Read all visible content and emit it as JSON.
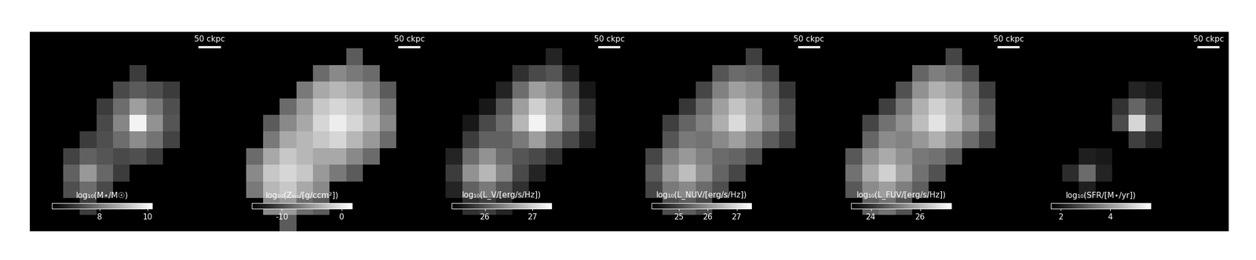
{
  "chart_data": [
    {
      "type": "heatmap",
      "tick_labels": false,
      "color": "gray",
      "scale_bar": {
        "label": "50 ckpc",
        "length": 50
      },
      "field_of_view": 450,
      "colorbar_label": "log₁₀(M⋆/M☉)",
      "colorbar_range": [
        6.0,
        10.2
      ],
      "colorbar_ticks": [
        8,
        10
      ],
      "cells": [
        [
          null,
          null,
          null,
          null,
          null,
          null,
          null,
          null,
          null,
          null,
          null,
          null
        ],
        [
          null,
          null,
          null,
          null,
          null,
          null,
          null,
          null,
          null,
          null,
          null,
          null
        ],
        [
          null,
          null,
          null,
          null,
          null,
          null,
          7.0,
          null,
          null,
          null,
          null,
          null
        ],
        [
          null,
          null,
          null,
          null,
          null,
          7.2,
          7.5,
          7.3,
          7.0,
          null,
          null,
          null
        ],
        [
          null,
          null,
          null,
          null,
          7.0,
          7.8,
          8.6,
          8.0,
          7.3,
          null,
          null,
          null
        ],
        [
          null,
          null,
          null,
          null,
          7.2,
          8.2,
          10.0,
          8.4,
          7.4,
          null,
          null,
          null
        ],
        [
          null,
          null,
          null,
          7.0,
          7.3,
          7.8,
          8.3,
          7.9,
          7.1,
          null,
          null,
          null
        ],
        [
          null,
          null,
          7.1,
          7.6,
          7.4,
          7.2,
          7.3,
          7.0,
          null,
          null,
          null,
          null
        ],
        [
          null,
          null,
          7.6,
          8.5,
          7.7,
          7.0,
          null,
          null,
          null,
          null,
          null,
          null
        ],
        [
          null,
          null,
          7.3,
          7.8,
          7.2,
          null,
          null,
          null,
          null,
          null,
          null,
          null
        ],
        [
          null,
          null,
          null,
          7.0,
          null,
          null,
          null,
          null,
          null,
          null,
          null,
          null
        ],
        [
          null,
          null,
          null,
          null,
          null,
          null,
          null,
          null,
          null,
          null,
          null,
          null
        ]
      ]
    },
    {
      "type": "heatmap",
      "tick_labels": false,
      "color": "gray",
      "scale_bar": {
        "label": "50 ckpc",
        "length": 50
      },
      "field_of_view": 450,
      "colorbar_label": "log₁₀(Zₗₒₛ/[g/ccm²])",
      "colorbar_range": [
        -15.0,
        1.7
      ],
      "colorbar_ticks": [
        -10,
        0
      ],
      "cells": [
        [
          null,
          null,
          null,
          null,
          null,
          null,
          null,
          null,
          null,
          null,
          null,
          null
        ],
        [
          null,
          null,
          null,
          null,
          null,
          null,
          null,
          -9,
          null,
          null,
          null,
          null
        ],
        [
          null,
          null,
          null,
          null,
          null,
          -8,
          -6,
          -7,
          -8,
          null,
          null,
          null
        ],
        [
          null,
          null,
          null,
          null,
          -7,
          -4,
          -3,
          -4,
          -6,
          -9,
          null,
          null
        ],
        [
          null,
          null,
          null,
          -8,
          -5,
          -2,
          -1,
          -2,
          -4,
          -7,
          null,
          null
        ],
        [
          null,
          null,
          -9,
          -6,
          -4,
          -1,
          0.5,
          -1,
          -3,
          -6,
          null,
          null
        ],
        [
          null,
          null,
          -7,
          -4,
          -3,
          -2,
          -1,
          -3,
          -5,
          -8,
          null,
          null
        ],
        [
          null,
          -8,
          -4,
          -2,
          -3,
          -4,
          -4,
          -6,
          -8,
          null,
          null,
          null
        ],
        [
          null,
          -6,
          -2,
          -1,
          -2,
          -5,
          -7,
          -9,
          null,
          null,
          null,
          null
        ],
        [
          null,
          -7,
          -3,
          -2,
          -4,
          -6,
          null,
          null,
          null,
          null,
          null,
          null
        ],
        [
          null,
          null,
          -6,
          -5,
          -8,
          -9,
          null,
          null,
          null,
          null,
          null,
          null
        ],
        [
          null,
          null,
          null,
          -9,
          null,
          null,
          null,
          null,
          null,
          null,
          null,
          null
        ]
      ]
    },
    {
      "type": "heatmap",
      "tick_labels": false,
      "color": "gray",
      "scale_bar": {
        "label": "50 ckpc",
        "length": 50
      },
      "field_of_view": 450,
      "colorbar_label": "log₁₀(L_V/[erg/s/Hz])",
      "colorbar_range": [
        25.3,
        27.4
      ],
      "colorbar_ticks": [
        26,
        27
      ],
      "cells": [
        [
          null,
          null,
          null,
          null,
          null,
          null,
          null,
          null,
          null,
          null,
          null,
          null
        ],
        [
          null,
          null,
          null,
          null,
          null,
          null,
          null,
          25.6,
          null,
          null,
          null,
          null
        ],
        [
          null,
          null,
          null,
          null,
          null,
          25.7,
          25.9,
          26.0,
          25.6,
          null,
          null,
          null
        ],
        [
          null,
          null,
          null,
          null,
          25.6,
          26.2,
          26.6,
          26.4,
          26.0,
          25.5,
          null,
          null
        ],
        [
          null,
          null,
          null,
          25.5,
          26.0,
          26.6,
          27.0,
          26.7,
          26.2,
          25.7,
          null,
          null
        ],
        [
          null,
          null,
          25.5,
          25.9,
          26.2,
          26.8,
          27.3,
          26.8,
          26.3,
          25.8,
          null,
          null
        ],
        [
          null,
          null,
          25.8,
          26.1,
          26.1,
          26.3,
          26.6,
          26.2,
          25.9,
          25.6,
          null,
          null
        ],
        [
          null,
          25.6,
          26.2,
          26.5,
          26.2,
          26.0,
          25.9,
          25.7,
          null,
          null,
          null,
          null
        ],
        [
          null,
          25.8,
          26.5,
          26.8,
          26.4,
          25.9,
          25.6,
          null,
          null,
          null,
          null,
          null
        ],
        [
          null,
          25.6,
          26.1,
          26.3,
          26.0,
          25.7,
          null,
          null,
          null,
          null,
          null,
          null
        ],
        [
          null,
          null,
          25.7,
          25.8,
          25.6,
          null,
          null,
          null,
          null,
          null,
          null,
          null
        ],
        [
          null,
          null,
          null,
          null,
          null,
          null,
          null,
          null,
          null,
          null,
          null,
          null
        ]
      ]
    },
    {
      "type": "heatmap",
      "tick_labels": false,
      "color": "gray",
      "scale_bar": {
        "label": "50 ckpc",
        "length": 50
      },
      "field_of_view": 450,
      "colorbar_label": "log₁₀(L_NUV/[erg/s/Hz])",
      "colorbar_range": [
        24.05,
        27.5
      ],
      "colorbar_ticks": [
        25,
        26,
        27
      ],
      "cells": [
        [
          null,
          null,
          null,
          null,
          null,
          null,
          null,
          null,
          null,
          null,
          null,
          null
        ],
        [
          null,
          null,
          null,
          null,
          null,
          null,
          null,
          24.9,
          null,
          null,
          null,
          null
        ],
        [
          null,
          null,
          null,
          null,
          null,
          25.2,
          25.5,
          25.4,
          25.0,
          null,
          null,
          null
        ],
        [
          null,
          null,
          null,
          null,
          25.0,
          25.8,
          26.2,
          26.0,
          25.5,
          24.8,
          null,
          null
        ],
        [
          null,
          null,
          null,
          24.8,
          25.5,
          26.2,
          26.7,
          26.3,
          25.7,
          25.1,
          null,
          null
        ],
        [
          null,
          null,
          24.9,
          25.4,
          25.8,
          26.4,
          27.0,
          26.4,
          25.9,
          25.2,
          null,
          null
        ],
        [
          null,
          null,
          25.2,
          25.7,
          25.6,
          25.9,
          26.2,
          25.8,
          25.3,
          24.9,
          null,
          null
        ],
        [
          null,
          25.0,
          25.8,
          26.1,
          25.8,
          25.5,
          25.4,
          25.1,
          null,
          null,
          null,
          null
        ],
        [
          null,
          25.3,
          26.1,
          26.6,
          26.0,
          25.4,
          25.0,
          null,
          null,
          null,
          null,
          null
        ],
        [
          null,
          25.0,
          25.7,
          25.9,
          25.5,
          25.1,
          null,
          null,
          null,
          null,
          null,
          null
        ],
        [
          null,
          null,
          25.1,
          25.3,
          25.0,
          null,
          null,
          null,
          null,
          null,
          null,
          null
        ],
        [
          null,
          null,
          null,
          null,
          null,
          null,
          null,
          null,
          null,
          null,
          null,
          null
        ]
      ]
    },
    {
      "type": "heatmap",
      "tick_labels": false,
      "color": "gray",
      "scale_bar": {
        "label": "50 ckpc",
        "length": 50
      },
      "field_of_view": 450,
      "colorbar_label": "log₁₀(L_FUV/[erg/s/Hz])",
      "colorbar_range": [
        23.2,
        27.25
      ],
      "colorbar_ticks": [
        24,
        26
      ],
      "cells": [
        [
          null,
          null,
          null,
          null,
          null,
          null,
          null,
          null,
          null,
          null,
          null,
          null
        ],
        [
          null,
          null,
          null,
          null,
          null,
          null,
          null,
          24.3,
          null,
          null,
          null,
          null
        ],
        [
          null,
          null,
          null,
          null,
          null,
          24.8,
          25.2,
          25.0,
          24.4,
          null,
          null,
          null
        ],
        [
          null,
          null,
          null,
          null,
          24.5,
          25.5,
          26.0,
          25.7,
          25.1,
          24.2,
          null,
          null
        ],
        [
          null,
          null,
          null,
          24.2,
          25.1,
          26.0,
          26.5,
          26.1,
          25.3,
          24.6,
          null,
          null
        ],
        [
          null,
          null,
          24.3,
          25.0,
          25.5,
          26.2,
          26.8,
          26.2,
          25.6,
          24.8,
          null,
          null
        ],
        [
          null,
          null,
          24.8,
          25.4,
          25.3,
          25.6,
          26.0,
          25.5,
          24.9,
          24.3,
          null,
          null
        ],
        [
          null,
          24.6,
          25.5,
          25.9,
          25.5,
          25.1,
          25.0,
          24.6,
          null,
          null,
          null,
          null
        ],
        [
          null,
          25.0,
          25.9,
          26.5,
          25.8,
          25.0,
          24.5,
          null,
          null,
          null,
          null,
          null
        ],
        [
          null,
          24.6,
          25.4,
          25.7,
          25.2,
          24.7,
          null,
          null,
          null,
          null,
          null,
          null
        ],
        [
          null,
          null,
          24.7,
          25.0,
          24.5,
          null,
          null,
          null,
          null,
          null,
          null,
          null
        ],
        [
          null,
          null,
          null,
          null,
          null,
          null,
          null,
          null,
          null,
          null,
          null,
          null
        ]
      ]
    },
    {
      "type": "heatmap",
      "tick_labels": false,
      "color": "gray",
      "scale_bar": {
        "label": "50 ckpc",
        "length": 50
      },
      "field_of_view": 450,
      "colorbar_label": "log₁₀(SFR/[M⋆/yr])",
      "colorbar_range": [
        1.6,
        5.65
      ],
      "colorbar_ticks": [
        2,
        4
      ],
      "cells": [
        [
          null,
          null,
          null,
          null,
          null,
          null,
          null,
          null,
          null,
          null,
          null,
          null
        ],
        [
          null,
          null,
          null,
          null,
          null,
          null,
          null,
          null,
          null,
          null,
          null,
          null
        ],
        [
          null,
          null,
          null,
          null,
          null,
          null,
          null,
          null,
          null,
          null,
          null,
          null
        ],
        [
          null,
          null,
          null,
          null,
          null,
          null,
          2.2,
          2.0,
          null,
          null,
          null,
          null
        ],
        [
          null,
          null,
          null,
          null,
          null,
          2.4,
          3.2,
          2.5,
          null,
          null,
          null,
          null
        ],
        [
          null,
          null,
          null,
          null,
          null,
          2.8,
          5.0,
          3.0,
          null,
          null,
          null,
          null
        ],
        [
          null,
          null,
          null,
          null,
          null,
          null,
          2.6,
          2.2,
          null,
          null,
          null,
          null
        ],
        [
          null,
          null,
          null,
          2.1,
          2.0,
          null,
          null,
          null,
          null,
          null,
          null,
          null
        ],
        [
          null,
          null,
          2.3,
          3.3,
          2.2,
          null,
          null,
          null,
          null,
          null,
          null,
          null
        ],
        [
          null,
          null,
          null,
          2.1,
          null,
          null,
          null,
          null,
          null,
          null,
          null,
          null
        ],
        [
          null,
          null,
          null,
          null,
          null,
          null,
          null,
          null,
          null,
          null,
          null,
          null
        ],
        [
          null,
          null,
          null,
          null,
          null,
          null,
          null,
          null,
          null,
          null,
          null,
          null
        ]
      ]
    }
  ]
}
